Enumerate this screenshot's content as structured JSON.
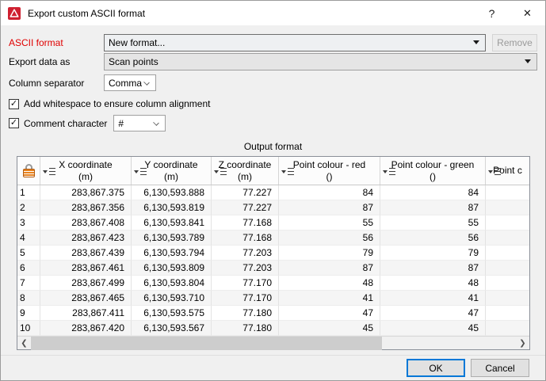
{
  "window": {
    "title": "Export custom ASCII format",
    "help_label": "?",
    "close_label": "✕"
  },
  "form": {
    "ascii_format": {
      "label": "ASCII format",
      "value": "New format...",
      "remove_label": "Remove",
      "remove_enabled": false
    },
    "export_data_as": {
      "label": "Export data as",
      "value": "Scan points"
    },
    "column_separator": {
      "label": "Column separator",
      "value": "Comma"
    },
    "whitespace_checkbox": {
      "label": "Add whitespace to ensure column alignment",
      "checked": true
    },
    "comment_checkbox": {
      "label": "Comment character",
      "checked": true,
      "value": "#"
    }
  },
  "output": {
    "section_title": "Output format",
    "table": {
      "columns": [
        {
          "label": "X coordinate",
          "unit": "(m)"
        },
        {
          "label": "Y coordinate",
          "unit": "(m)"
        },
        {
          "label": "Z coordinate",
          "unit": "(m)"
        },
        {
          "label": "Point colour - red",
          "unit": "()"
        },
        {
          "label": "Point colour - green",
          "unit": "()"
        },
        {
          "label": "Point c",
          "unit": ""
        }
      ],
      "rows": [
        [
          "1",
          "283,867.375",
          "6,130,593.888",
          "77.227",
          "84",
          "84",
          ""
        ],
        [
          "2",
          "283,867.356",
          "6,130,593.819",
          "77.227",
          "87",
          "87",
          ""
        ],
        [
          "3",
          "283,867.408",
          "6,130,593.841",
          "77.168",
          "55",
          "55",
          ""
        ],
        [
          "4",
          "283,867.423",
          "6,130,593.789",
          "77.168",
          "56",
          "56",
          ""
        ],
        [
          "5",
          "283,867.439",
          "6,130,593.794",
          "77.203",
          "79",
          "79",
          ""
        ],
        [
          "6",
          "283,867.461",
          "6,130,593.809",
          "77.203",
          "87",
          "87",
          ""
        ],
        [
          "7",
          "283,867.499",
          "6,130,593.804",
          "77.170",
          "48",
          "48",
          ""
        ],
        [
          "8",
          "283,867.465",
          "6,130,593.710",
          "77.170",
          "41",
          "41",
          ""
        ],
        [
          "9",
          "283,867.411",
          "6,130,593.575",
          "77.180",
          "47",
          "47",
          ""
        ],
        [
          "10",
          "283,867.420",
          "6,130,593.567",
          "77.180",
          "45",
          "45",
          ""
        ]
      ]
    }
  },
  "footer": {
    "ok_label": "OK",
    "cancel_label": "Cancel"
  },
  "icons": {
    "app_icon": "maptek-triangle-icon",
    "checkmark": "✓",
    "scroll_left": "❮",
    "scroll_right": "❯"
  },
  "colors": {
    "accent_blue": "#0078d7",
    "label_red": "#e00000",
    "lock_orange": "#e8821e",
    "app_icon_red": "#cf2030"
  }
}
